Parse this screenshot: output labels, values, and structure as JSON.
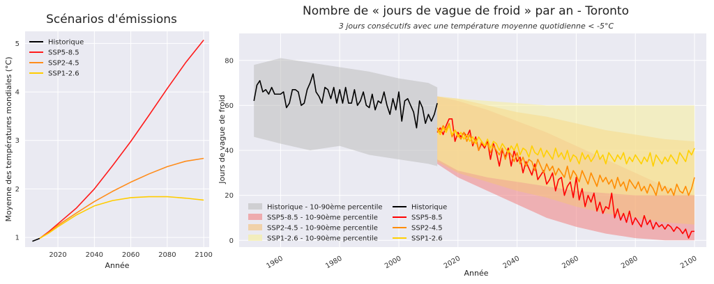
{
  "chart_data": [
    {
      "type": "line",
      "title": "Scénarios d'émissions",
      "xlabel": "Année",
      "ylabel": "Moyenne des températures mondiales (°C)",
      "xlim": [
        2002,
        2103
      ],
      "ylim": [
        0.8,
        5.25
      ],
      "xticks": [
        2020,
        2040,
        2060,
        2080,
        2100
      ],
      "yticks": [
        1,
        2,
        3,
        4,
        5
      ],
      "grid": true,
      "legend_position": "top-left",
      "series": [
        {
          "name": "Historique",
          "color": "#000000",
          "x": [
            2006,
            2010
          ],
          "y": [
            0.92,
            0.98
          ]
        },
        {
          "name": "SSP5-8.5",
          "color": "#ff1a1a",
          "x": [
            2010,
            2015,
            2020,
            2030,
            2040,
            2050,
            2060,
            2070,
            2080,
            2090,
            2100
          ],
          "y": [
            0.98,
            1.12,
            1.28,
            1.6,
            2.0,
            2.48,
            2.98,
            3.52,
            4.07,
            4.6,
            5.07
          ]
        },
        {
          "name": "SSP2-4.5",
          "color": "#ff8c1a",
          "x": [
            2010,
            2015,
            2020,
            2030,
            2040,
            2050,
            2060,
            2070,
            2080,
            2090,
            2100
          ],
          "y": [
            0.98,
            1.1,
            1.25,
            1.5,
            1.74,
            1.95,
            2.14,
            2.31,
            2.46,
            2.57,
            2.63
          ]
        },
        {
          "name": "SSP1-2.6",
          "color": "#ffcc00",
          "x": [
            2010,
            2015,
            2020,
            2030,
            2040,
            2050,
            2060,
            2070,
            2080,
            2090,
            2100
          ],
          "y": [
            0.98,
            1.09,
            1.22,
            1.46,
            1.65,
            1.76,
            1.82,
            1.84,
            1.84,
            1.81,
            1.77
          ]
        }
      ]
    },
    {
      "type": "line",
      "title": "Nombre de « jours de vague de froid » par an - Toronto",
      "subtitle": "3 jours consécutifs avec une température moyenne quotidienne < -5°C",
      "xlabel": "Année",
      "ylabel": "Jours de vague de froid",
      "xlim": [
        1946,
        2104
      ],
      "ylim": [
        -3,
        92
      ],
      "xticks": [
        1960,
        1980,
        2000,
        2020,
        2040,
        2060,
        2080,
        2100
      ],
      "yticks": [
        0,
        20,
        40,
        60,
        80
      ],
      "grid": true,
      "legend_position": "bottom-left",
      "legend_order": [
        "Historique - 10-90ème percentile",
        "SSP5-8.5 - 10-90ème percentile",
        "SSP2-4.5 - 10-90ème percentile",
        "SSP1-2.6 - 10-90ème percentile",
        "Historique",
        "SSP5-8.5",
        "SSP2-4.5",
        "SSP1-2.6"
      ],
      "bands": [
        {
          "name": "Historique - 10-90ème percentile",
          "color": "#bdbdbd",
          "x": [
            1951,
            1960,
            1970,
            1980,
            1990,
            2000,
            2010,
            2013
          ],
          "low": [
            46,
            43,
            40,
            42,
            38,
            36,
            34,
            33
          ],
          "high": [
            78,
            81,
            79,
            77,
            75,
            72,
            70,
            68
          ]
        },
        {
          "name": "SSP5-8.5 - 10-90ème percentile",
          "color": "#f08080",
          "x": [
            2013,
            2020,
            2030,
            2040,
            2050,
            2060,
            2070,
            2080,
            2090,
            2100
          ],
          "low": [
            34,
            28,
            22,
            16,
            10,
            6,
            3,
            1,
            0,
            0
          ],
          "high": [
            64,
            62,
            58,
            53,
            48,
            42,
            36,
            30,
            24,
            20
          ]
        },
        {
          "name": "SSP2-4.5 - 10-90ème percentile",
          "color": "#f5c27a",
          "x": [
            2013,
            2020,
            2030,
            2040,
            2050,
            2060,
            2070,
            2080,
            2090,
            2100
          ],
          "low": [
            35,
            30,
            26,
            22,
            19,
            15,
            12,
            10,
            8,
            7
          ],
          "high": [
            64,
            63,
            60,
            57,
            55,
            52,
            49,
            47,
            45,
            44
          ]
        },
        {
          "name": "SSP1-2.6 - 10-90ème percentile",
          "color": "#f7ee9a",
          "x": [
            2013,
            2020,
            2030,
            2040,
            2050,
            2060,
            2070,
            2080,
            2090,
            2100
          ],
          "low": [
            36,
            31,
            28,
            26,
            24,
            22,
            21,
            20,
            20,
            20
          ],
          "high": [
            64,
            63,
            62,
            61,
            60,
            60,
            60,
            60,
            60,
            60
          ]
        }
      ],
      "series": [
        {
          "name": "Historique",
          "color": "#000000",
          "x": [
            1951,
            1952,
            1953,
            1954,
            1955,
            1956,
            1957,
            1958,
            1959,
            1960,
            1961,
            1962,
            1963,
            1964,
            1965,
            1966,
            1967,
            1968,
            1969,
            1970,
            1971,
            1972,
            1973,
            1974,
            1975,
            1976,
            1977,
            1978,
            1979,
            1980,
            1981,
            1982,
            1983,
            1984,
            1985,
            1986,
            1987,
            1988,
            1989,
            1990,
            1991,
            1992,
            1993,
            1994,
            1995,
            1996,
            1997,
            1998,
            1999,
            2000,
            2001,
            2002,
            2003,
            2004,
            2005,
            2006,
            2007,
            2008,
            2009,
            2010,
            2011,
            2012,
            2013
          ],
          "y": [
            62,
            69,
            71,
            66,
            67,
            65,
            68,
            65,
            65,
            65,
            66,
            59,
            61,
            67,
            67,
            66,
            60,
            61,
            67,
            70,
            74,
            66,
            64,
            61,
            68,
            67,
            63,
            68,
            61,
            67,
            61,
            68,
            61,
            61,
            67,
            60,
            62,
            66,
            60,
            59,
            65,
            58,
            62,
            61,
            66,
            60,
            56,
            63,
            58,
            66,
            53,
            62,
            63,
            60,
            57,
            50,
            62,
            59,
            52,
            56,
            53,
            56,
            61
          ]
        },
        {
          "name": "SSP5-8.5",
          "color": "#ff0000",
          "x": [
            2013,
            2014,
            2015,
            2016,
            2017,
            2018,
            2019,
            2020,
            2021,
            2022,
            2023,
            2024,
            2025,
            2026,
            2027,
            2028,
            2029,
            2030,
            2031,
            2032,
            2033,
            2034,
            2035,
            2036,
            2037,
            2038,
            2039,
            2040,
            2041,
            2042,
            2043,
            2044,
            2045,
            2046,
            2047,
            2048,
            2049,
            2050,
            2051,
            2052,
            2053,
            2054,
            2055,
            2056,
            2057,
            2058,
            2059,
            2060,
            2061,
            2062,
            2063,
            2064,
            2065,
            2066,
            2067,
            2068,
            2069,
            2070,
            2071,
            2072,
            2073,
            2074,
            2075,
            2076,
            2077,
            2078,
            2079,
            2080,
            2081,
            2082,
            2083,
            2084,
            2085,
            2086,
            2087,
            2088,
            2089,
            2090,
            2091,
            2092,
            2093,
            2094,
            2095,
            2096,
            2097,
            2098,
            2099,
            2100
          ],
          "y": [
            48,
            50,
            47,
            51,
            54,
            54,
            44,
            48,
            46,
            48,
            46,
            49,
            42,
            46,
            40,
            43,
            41,
            44,
            36,
            43,
            39,
            33,
            40,
            37,
            41,
            33,
            40,
            35,
            37,
            30,
            35,
            32,
            29,
            34,
            27,
            29,
            31,
            25,
            27,
            30,
            22,
            27,
            28,
            20,
            24,
            26,
            19,
            28,
            18,
            23,
            15,
            20,
            17,
            21,
            13,
            17,
            12,
            15,
            14,
            21,
            10,
            14,
            9,
            12,
            8,
            13,
            7,
            10,
            8,
            6,
            11,
            7,
            9,
            5,
            8,
            6,
            7,
            5,
            7,
            6,
            4,
            6,
            5,
            3,
            5,
            1,
            4,
            4
          ]
        },
        {
          "name": "SSP2-4.5",
          "color": "#ff8c00",
          "x": [
            2013,
            2014,
            2015,
            2016,
            2017,
            2018,
            2019,
            2020,
            2021,
            2022,
            2023,
            2024,
            2025,
            2026,
            2027,
            2028,
            2029,
            2030,
            2031,
            2032,
            2033,
            2034,
            2035,
            2036,
            2037,
            2038,
            2039,
            2040,
            2041,
            2042,
            2043,
            2044,
            2045,
            2046,
            2047,
            2048,
            2049,
            2050,
            2051,
            2052,
            2053,
            2054,
            2055,
            2056,
            2057,
            2058,
            2059,
            2060,
            2061,
            2062,
            2063,
            2064,
            2065,
            2066,
            2067,
            2068,
            2069,
            2070,
            2071,
            2072,
            2073,
            2074,
            2075,
            2076,
            2077,
            2078,
            2079,
            2080,
            2081,
            2082,
            2083,
            2084,
            2085,
            2086,
            2087,
            2088,
            2089,
            2090,
            2091,
            2092,
            2093,
            2094,
            2095,
            2096,
            2097,
            2098,
            2099,
            2100
          ],
          "y": [
            50,
            48,
            51,
            49,
            52,
            46,
            49,
            47,
            45,
            48,
            44,
            47,
            43,
            45,
            40,
            44,
            42,
            43,
            39,
            42,
            40,
            38,
            41,
            36,
            40,
            38,
            35,
            39,
            34,
            37,
            33,
            36,
            35,
            31,
            36,
            33,
            30,
            34,
            31,
            33,
            29,
            32,
            30,
            28,
            33,
            27,
            31,
            29,
            26,
            31,
            28,
            25,
            30,
            27,
            24,
            29,
            26,
            28,
            25,
            27,
            23,
            28,
            24,
            26,
            22,
            27,
            25,
            23,
            26,
            22,
            24,
            21,
            25,
            23,
            20,
            26,
            22,
            24,
            21,
            23,
            20,
            25,
            22,
            21,
            24,
            20,
            23,
            28
          ]
        },
        {
          "name": "SSP1-2.6",
          "color": "#ffd000",
          "x": [
            2013,
            2014,
            2015,
            2016,
            2017,
            2018,
            2019,
            2020,
            2021,
            2022,
            2023,
            2024,
            2025,
            2026,
            2027,
            2028,
            2029,
            2030,
            2031,
            2032,
            2033,
            2034,
            2035,
            2036,
            2037,
            2038,
            2039,
            2040,
            2041,
            2042,
            2043,
            2044,
            2045,
            2046,
            2047,
            2048,
            2049,
            2050,
            2051,
            2052,
            2053,
            2054,
            2055,
            2056,
            2057,
            2058,
            2059,
            2060,
            2061,
            2062,
            2063,
            2064,
            2065,
            2066,
            2067,
            2068,
            2069,
            2070,
            2071,
            2072,
            2073,
            2074,
            2075,
            2076,
            2077,
            2078,
            2079,
            2080,
            2081,
            2082,
            2083,
            2084,
            2085,
            2086,
            2087,
            2088,
            2089,
            2090,
            2091,
            2092,
            2093,
            2094,
            2095,
            2096,
            2097,
            2098,
            2099,
            2100
          ],
          "y": [
            49,
            47,
            50,
            48,
            51,
            47,
            49,
            46,
            48,
            45,
            47,
            44,
            46,
            43,
            46,
            44,
            42,
            45,
            41,
            44,
            43,
            40,
            43,
            41,
            39,
            42,
            40,
            43,
            38,
            41,
            40,
            37,
            42,
            39,
            38,
            41,
            37,
            40,
            38,
            36,
            41,
            37,
            39,
            36,
            40,
            35,
            38,
            37,
            34,
            39,
            36,
            38,
            35,
            37,
            40,
            36,
            38,
            34,
            39,
            37,
            35,
            38,
            36,
            39,
            34,
            37,
            35,
            38,
            36,
            34,
            37,
            35,
            39,
            33,
            38,
            36,
            34,
            37,
            35,
            38,
            36,
            34,
            39,
            37,
            35,
            40,
            38,
            41
          ]
        }
      ]
    }
  ]
}
